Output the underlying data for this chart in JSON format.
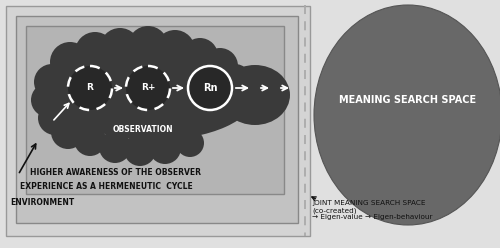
{
  "fig_width": 5.0,
  "fig_height": 2.48,
  "dpi": 100,
  "bg_color": "#e0e0e0",
  "rect_env_color": "#d4d4d4",
  "rect_hermeneutic_color": "#c2c2c2",
  "rect_awareness_color": "#b4b4b4",
  "cloud_color": "#3a3a3a",
  "circle_fill": "#282828",
  "circle_edge_white": "#ffffff",
  "meaning_space_color": "#686868",
  "text_white": "#ffffff",
  "text_dark": "#111111",
  "arrow_white": "#ffffff",
  "arrow_dark": "#111111",
  "env_label": "ENVIRONMENT",
  "hermeneutic_label": "EXPERIENCE AS A HERMENEUTIC  CYCLE",
  "awareness_label": "HIGHER AWARENESS OF THE OBSERVER",
  "observation_label": "OBSERVATION",
  "meaning_label": "MEANING SEARCH SPACE",
  "joint_label": "JOINT MEANING SEARCH SPACE\n(co-created)\n→ Eigen-value → Eigen-behaviour",
  "r_labels": [
    "R",
    "R+",
    "Rn"
  ]
}
